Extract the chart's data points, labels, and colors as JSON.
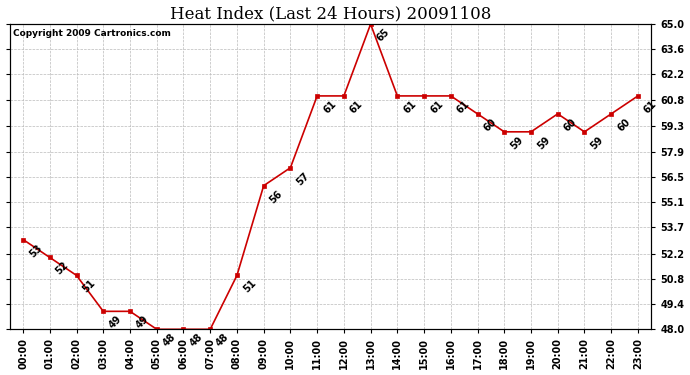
{
  "title": "Heat Index (Last 24 Hours) 20091108",
  "copyright": "Copyright 2009 Cartronics.com",
  "hours": [
    "00:00",
    "01:00",
    "02:00",
    "03:00",
    "04:00",
    "05:00",
    "06:00",
    "07:00",
    "08:00",
    "09:00",
    "10:00",
    "11:00",
    "12:00",
    "13:00",
    "14:00",
    "15:00",
    "16:00",
    "17:00",
    "18:00",
    "19:00",
    "20:00",
    "21:00",
    "22:00",
    "23:00"
  ],
  "values": [
    53,
    52,
    51,
    49,
    49,
    48,
    48,
    48,
    51,
    56,
    57,
    61,
    61,
    65,
    61,
    61,
    61,
    60,
    59,
    59,
    60,
    59,
    60,
    61
  ],
  "line_color": "#cc0000",
  "marker_color": "#cc0000",
  "bg_color": "#ffffff",
  "grid_color": "#bbbbbb",
  "ylim_min": 48.0,
  "ylim_max": 65.0,
  "yticks": [
    48.0,
    49.4,
    50.8,
    52.2,
    53.7,
    55.1,
    56.5,
    57.9,
    59.3,
    60.8,
    62.2,
    63.6,
    65.0
  ],
  "title_fontsize": 12,
  "annot_fontsize": 7,
  "tick_fontsize": 7,
  "copyright_fontsize": 6.5
}
